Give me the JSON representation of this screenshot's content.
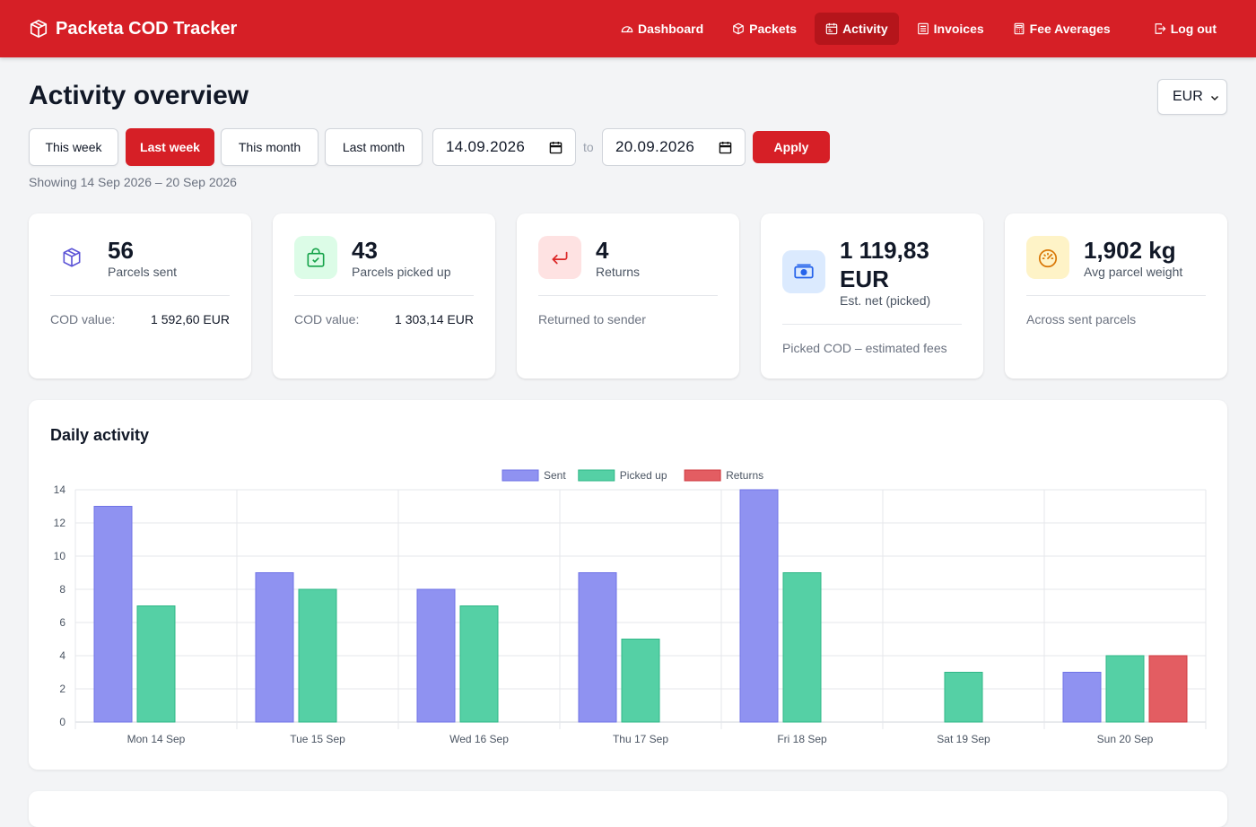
{
  "app": {
    "title": "Packeta COD Tracker"
  },
  "nav": {
    "items": [
      {
        "label": "Dashboard",
        "icon": "gauge-icon",
        "active": false
      },
      {
        "label": "Packets",
        "icon": "box-icon",
        "active": false
      },
      {
        "label": "Activity",
        "icon": "calendar-icon",
        "active": true
      },
      {
        "label": "Invoices",
        "icon": "receipt-icon",
        "active": false
      },
      {
        "label": "Fee Averages",
        "icon": "calculator-icon",
        "active": false
      }
    ],
    "logout": "Log out"
  },
  "page": {
    "title": "Activity overview",
    "currency": "EUR",
    "presets": [
      "This week",
      "Last week",
      "This month",
      "Last month"
    ],
    "active_preset": "Last week",
    "date_from": "14.09.2026",
    "date_to": "20.09.2026",
    "to_label": "to",
    "apply": "Apply",
    "showing": "Showing 14 Sep 2026 – 20 Sep 2026"
  },
  "cards": {
    "sent": {
      "value": "56",
      "label": "Parcels sent",
      "foot_label": "COD value:",
      "foot_value": "1 592,60 EUR",
      "icon": "box-icon"
    },
    "picked": {
      "value": "43",
      "label": "Parcels picked up",
      "foot_label": "COD value:",
      "foot_value": "1 303,14 EUR",
      "icon": "bag-check-icon"
    },
    "returns": {
      "value": "4",
      "label": "Returns",
      "foot_label": "Returned to sender",
      "icon": "return-arrow-icon"
    },
    "net": {
      "value_line1": "1 119,83",
      "value_line2": "EUR",
      "label": "Est. net (picked)",
      "foot_label": "Picked COD – estimated fees",
      "icon": "cash-icon"
    },
    "weight": {
      "value": "1,902 kg",
      "label": "Avg parcel weight",
      "foot_label": "Across sent parcels",
      "icon": "speedometer-icon"
    }
  },
  "colors": {
    "brand": "#d61f26",
    "sent": "#8f92f1",
    "picked": "#55d0a5",
    "returns": "#e35d62"
  },
  "chart_title": "Daily activity",
  "chart_data": {
    "type": "bar",
    "categories": [
      "Mon 14 Sep",
      "Tue 15 Sep",
      "Wed 16 Sep",
      "Thu 17 Sep",
      "Fri 18 Sep",
      "Sat 19 Sep",
      "Sun 20 Sep"
    ],
    "series": [
      {
        "name": "Sent",
        "values": [
          13,
          9,
          8,
          9,
          14,
          0,
          3
        ]
      },
      {
        "name": "Picked up",
        "values": [
          7,
          8,
          7,
          5,
          9,
          3,
          4
        ]
      },
      {
        "name": "Returns",
        "values": [
          0,
          0,
          0,
          0,
          0,
          0,
          4
        ]
      }
    ],
    "ylim": [
      0,
      14
    ],
    "yticks": [
      0,
      2,
      4,
      6,
      8,
      10,
      12,
      14
    ],
    "legend": "top-center",
    "grid": true
  }
}
